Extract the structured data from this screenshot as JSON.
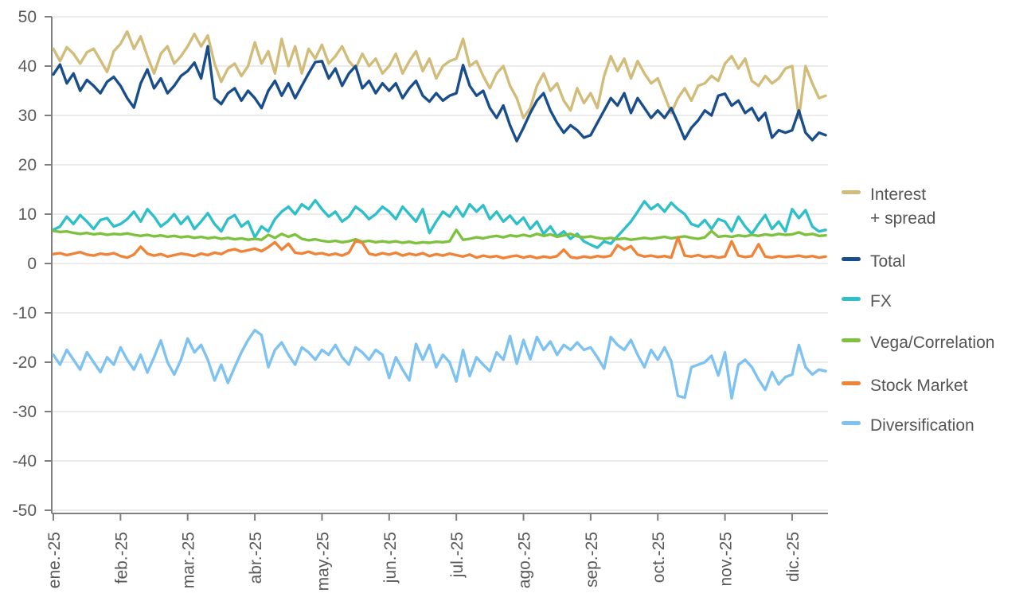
{
  "chart_data": {
    "type": "line",
    "title": "",
    "xlabel": "",
    "ylabel": "",
    "grid": true,
    "legend_position": "right",
    "x_axis": {
      "tick_labels": [
        "ene.-25",
        "feb.-25",
        "mar.-25",
        "abr.-25",
        "may.-25",
        "jun.-25",
        "jul.-25",
        "ago.-25",
        "sep.-25",
        "oct.-25",
        "nov.-25",
        "dic.-25"
      ],
      "points_per_month": 10
    },
    "y_axis": {
      "min": -50,
      "max": 50,
      "step": 10,
      "tick_labels": [
        "50",
        "40",
        "30",
        "20",
        "10",
        "0",
        "-10",
        "-20",
        "-30",
        "-40",
        "-50"
      ]
    },
    "colors": {
      "axis_line": "#7f7f7f",
      "gridline": "#d9d9d9",
      "label_text": "#595959",
      "legend_text": "#555555"
    },
    "series": [
      {
        "name": "Interest\n+ spread",
        "color": "#d2bc7a",
        "values": [
          43.5,
          41.0,
          43.8,
          42.5,
          40.5,
          42.8,
          43.5,
          41.2,
          38.8,
          43.0,
          44.5,
          47.0,
          43.5,
          46.0,
          42.0,
          38.5,
          42.5,
          44.0,
          40.5,
          42.0,
          44.0,
          46.5,
          44.0,
          46.2,
          40.5,
          36.8,
          39.5,
          40.5,
          38.0,
          40.0,
          44.8,
          40.5,
          43.0,
          38.5,
          45.5,
          40.0,
          44.0,
          38.5,
          43.5,
          41.5,
          44.3,
          40.5,
          42.0,
          44.0,
          41.0,
          39.5,
          42.5,
          40.0,
          41.5,
          38.5,
          40.0,
          42.5,
          38.5,
          41.0,
          43.0,
          39.0,
          41.5,
          37.5,
          40.0,
          41.0,
          41.5,
          45.5,
          40.0,
          41.0,
          38.0,
          35.5,
          38.5,
          40.0,
          36.0,
          33.5,
          29.5,
          31.5,
          36.0,
          38.5,
          35.0,
          36.5,
          33.0,
          31.0,
          35.5,
          32.5,
          34.5,
          31.5,
          38.0,
          42.0,
          39.0,
          41.5,
          37.5,
          41.0,
          38.5,
          36.5,
          37.5,
          34.0,
          30.5,
          33.5,
          35.5,
          33.0,
          36.0,
          36.5,
          38.0,
          37.0,
          40.5,
          42.0,
          39.5,
          41.5,
          37.0,
          36.0,
          38.0,
          36.5,
          37.5,
          39.5,
          40.0,
          29.5,
          40.0,
          36.5,
          33.5,
          34.0
        ]
      },
      {
        "name": "Total",
        "color": "#1a4e8a",
        "values": [
          38.3,
          40.3,
          36.5,
          38.5,
          35.0,
          37.2,
          36.0,
          34.5,
          36.8,
          37.8,
          36.0,
          33.5,
          31.6,
          36.5,
          39.3,
          35.5,
          37.5,
          34.5,
          36.0,
          38.0,
          39.0,
          40.7,
          37.5,
          44.0,
          33.5,
          32.3,
          34.5,
          35.5,
          33.0,
          35.0,
          33.5,
          31.5,
          35.0,
          37.0,
          34.0,
          36.5,
          33.5,
          36.0,
          38.5,
          40.8,
          41.0,
          37.5,
          39.5,
          36.0,
          38.5,
          40.0,
          35.5,
          37.0,
          34.5,
          36.5,
          35.0,
          36.5,
          33.5,
          35.5,
          37.0,
          34.0,
          32.8,
          34.5,
          33.0,
          34.0,
          34.5,
          40.2,
          36.0,
          34.0,
          35.0,
          31.5,
          29.5,
          32.0,
          28.0,
          24.8,
          27.5,
          30.5,
          33.0,
          34.5,
          31.0,
          28.5,
          26.5,
          28.0,
          27.0,
          25.5,
          26.0,
          28.5,
          31.0,
          33.5,
          32.0,
          34.5,
          30.5,
          33.5,
          31.5,
          29.5,
          31.0,
          29.5,
          31.5,
          28.5,
          25.2,
          27.5,
          29.0,
          31.0,
          30.0,
          34.0,
          34.4,
          32.0,
          33.0,
          30.5,
          31.5,
          29.0,
          30.5,
          25.5,
          27.0,
          26.5,
          27.0,
          31.0,
          26.5,
          25.0,
          26.5,
          26.0
        ]
      },
      {
        "name": "FX",
        "color": "#2fbfc9",
        "values": [
          6.8,
          7.5,
          9.5,
          8.0,
          9.8,
          8.5,
          7.0,
          8.8,
          9.2,
          7.5,
          8.0,
          9.0,
          10.5,
          8.5,
          11.0,
          9.5,
          7.5,
          8.5,
          10.0,
          8.0,
          9.5,
          7.0,
          8.5,
          10.2,
          8.0,
          6.5,
          9.0,
          9.8,
          7.5,
          8.5,
          5.3,
          7.5,
          6.5,
          9.0,
          10.5,
          11.5,
          10.0,
          12.0,
          11.0,
          12.8,
          11.0,
          9.5,
          10.5,
          8.5,
          9.5,
          11.5,
          10.5,
          9.0,
          10.0,
          11.5,
          10.5,
          9.0,
          11.5,
          10.0,
          8.5,
          11.0,
          6.2,
          8.5,
          10.5,
          9.5,
          11.5,
          9.5,
          12.0,
          10.5,
          11.8,
          9.0,
          10.5,
          8.5,
          9.7,
          8.0,
          9.3,
          7.0,
          8.5,
          6.0,
          7.5,
          5.5,
          6.5,
          5.0,
          6.0,
          4.5,
          3.8,
          3.2,
          4.5,
          4.0,
          5.5,
          7.0,
          8.5,
          10.5,
          12.6,
          11.0,
          12.0,
          10.5,
          12.3,
          11.0,
          10.0,
          8.0,
          7.5,
          8.8,
          7.0,
          9.0,
          8.5,
          6.5,
          9.5,
          7.5,
          6.0,
          8.0,
          9.8,
          7.0,
          8.5,
          6.5,
          11.0,
          9.2,
          10.8,
          7.5,
          6.5,
          6.8
        ]
      },
      {
        "name": "Vega/Correlation",
        "color": "#7ec13e",
        "values": [
          6.6,
          6.4,
          6.5,
          6.2,
          6.0,
          6.2,
          5.9,
          6.1,
          5.8,
          6.0,
          5.9,
          6.1,
          5.8,
          5.6,
          5.8,
          5.5,
          5.7,
          5.4,
          5.6,
          5.3,
          5.5,
          5.2,
          5.4,
          5.1,
          5.3,
          5.0,
          5.2,
          4.9,
          5.1,
          4.8,
          5.0,
          4.8,
          5.8,
          5.2,
          6.0,
          5.4,
          5.9,
          5.0,
          4.7,
          4.9,
          4.6,
          4.4,
          4.6,
          4.3,
          4.5,
          4.9,
          4.4,
          4.6,
          4.3,
          4.5,
          4.3,
          4.5,
          4.2,
          4.4,
          4.1,
          4.3,
          4.2,
          4.4,
          4.3,
          4.5,
          6.8,
          4.8,
          5.0,
          5.3,
          5.1,
          5.4,
          5.6,
          5.3,
          5.7,
          5.5,
          5.8,
          5.5,
          6.0,
          5.6,
          5.9,
          5.4,
          5.7,
          6.0,
          5.5,
          5.3,
          5.5,
          5.2,
          5.0,
          5.2,
          4.9,
          5.1,
          4.8,
          5.0,
          5.2,
          5.0,
          5.2,
          5.4,
          5.1,
          5.3,
          5.5,
          5.2,
          5.0,
          5.3,
          6.6,
          5.4,
          5.6,
          5.4,
          5.7,
          5.5,
          5.8,
          5.6,
          5.9,
          5.7,
          6.0,
          5.8,
          5.9,
          6.3,
          5.8,
          6.0,
          5.6,
          5.7
        ]
      },
      {
        "name": "Stock Market",
        "color": "#ef8438",
        "values": [
          1.9,
          2.1,
          1.7,
          2.0,
          2.3,
          1.8,
          1.6,
          2.0,
          1.8,
          2.1,
          1.5,
          1.2,
          1.8,
          3.4,
          2.0,
          1.6,
          1.9,
          1.4,
          1.7,
          2.0,
          1.8,
          1.5,
          2.0,
          1.7,
          2.2,
          1.9,
          2.6,
          2.9,
          2.4,
          2.7,
          3.0,
          2.5,
          3.3,
          4.3,
          2.8,
          4.0,
          2.2,
          2.0,
          2.4,
          1.9,
          2.1,
          1.7,
          2.0,
          1.6,
          2.2,
          4.6,
          4.2,
          2.0,
          1.7,
          2.1,
          1.8,
          2.2,
          1.6,
          2.0,
          1.7,
          2.1,
          1.5,
          1.9,
          1.6,
          2.0,
          1.7,
          1.4,
          1.8,
          1.2,
          1.6,
          1.3,
          1.5,
          1.1,
          1.4,
          1.6,
          1.2,
          1.5,
          1.1,
          1.4,
          1.2,
          1.5,
          2.8,
          1.3,
          1.1,
          1.4,
          1.2,
          1.5,
          1.3,
          1.6,
          3.7,
          2.8,
          3.5,
          1.8,
          1.4,
          1.6,
          1.3,
          1.5,
          1.2,
          5.3,
          1.6,
          1.4,
          1.7,
          1.3,
          1.5,
          1.2,
          1.4,
          4.5,
          1.6,
          1.3,
          1.5,
          3.9,
          1.4,
          1.2,
          1.5,
          1.3,
          1.4,
          1.6,
          1.3,
          1.5,
          1.2,
          1.4
        ]
      },
      {
        "name": "Diversification",
        "color": "#7dc2f0",
        "values": [
          -18.5,
          -20.5,
          -17.5,
          -19.5,
          -21.5,
          -18.0,
          -20.0,
          -22.0,
          -19.0,
          -20.5,
          -17.0,
          -19.5,
          -21.5,
          -18.5,
          -22.1,
          -19.0,
          -15.6,
          -20.0,
          -22.5,
          -19.5,
          -15.2,
          -18.0,
          -16.5,
          -19.5,
          -23.7,
          -20.5,
          -24.2,
          -21.0,
          -18.0,
          -15.5,
          -13.5,
          -14.5,
          -21.0,
          -17.5,
          -16.0,
          -18.5,
          -20.5,
          -17.0,
          -18.0,
          -19.5,
          -17.5,
          -18.5,
          -16.5,
          -19.0,
          -20.5,
          -17.0,
          -18.0,
          -19.5,
          -17.5,
          -18.5,
          -23.2,
          -19.0,
          -21.5,
          -23.7,
          -16.3,
          -19.5,
          -16.5,
          -21.0,
          -18.5,
          -20.0,
          -23.9,
          -17.5,
          -22.8,
          -19.0,
          -20.5,
          -21.8,
          -18.0,
          -19.5,
          -14.7,
          -20.3,
          -15.5,
          -19.4,
          -14.9,
          -17.5,
          -15.8,
          -18.5,
          -16.5,
          -17.5,
          -16.0,
          -17.5,
          -17.0,
          -19.0,
          -21.3,
          -14.9,
          -16.5,
          -17.5,
          -15.5,
          -18.5,
          -21.0,
          -17.5,
          -19.5,
          -17.0,
          -19.8,
          -26.8,
          -27.2,
          -21.0,
          -20.5,
          -20.0,
          -18.7,
          -22.7,
          -18.0,
          -27.3,
          -20.5,
          -19.5,
          -21.0,
          -23.5,
          -25.6,
          -22.0,
          -24.5,
          -23.0,
          -22.5,
          -16.5,
          -21.0,
          -22.5,
          -21.5,
          -21.8
        ]
      }
    ]
  }
}
